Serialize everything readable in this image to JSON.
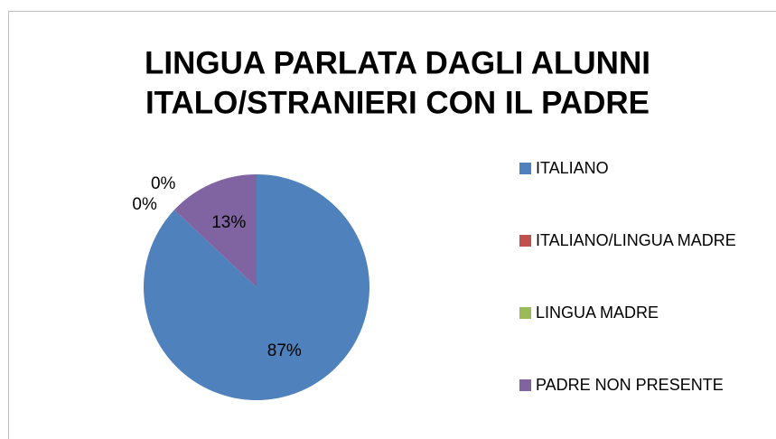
{
  "chart_data": {
    "type": "pie",
    "title": [
      "LINGUA PARLATA DAGLI ALUNNI",
      "ITALO/STRANIERI CON IL PADRE"
    ],
    "categories": [
      "ITALIANO",
      "ITALIANO/LINGUA MADRE",
      "LINGUA MADRE",
      "PADRE NON PRESENTE"
    ],
    "values": [
      87,
      0,
      0,
      13
    ],
    "value_labels": [
      "87%",
      "0%",
      "0%",
      "13%"
    ],
    "colors": [
      "#4f81bd",
      "#c0504d",
      "#9bbb59",
      "#8064a2"
    ],
    "legend": "right"
  }
}
